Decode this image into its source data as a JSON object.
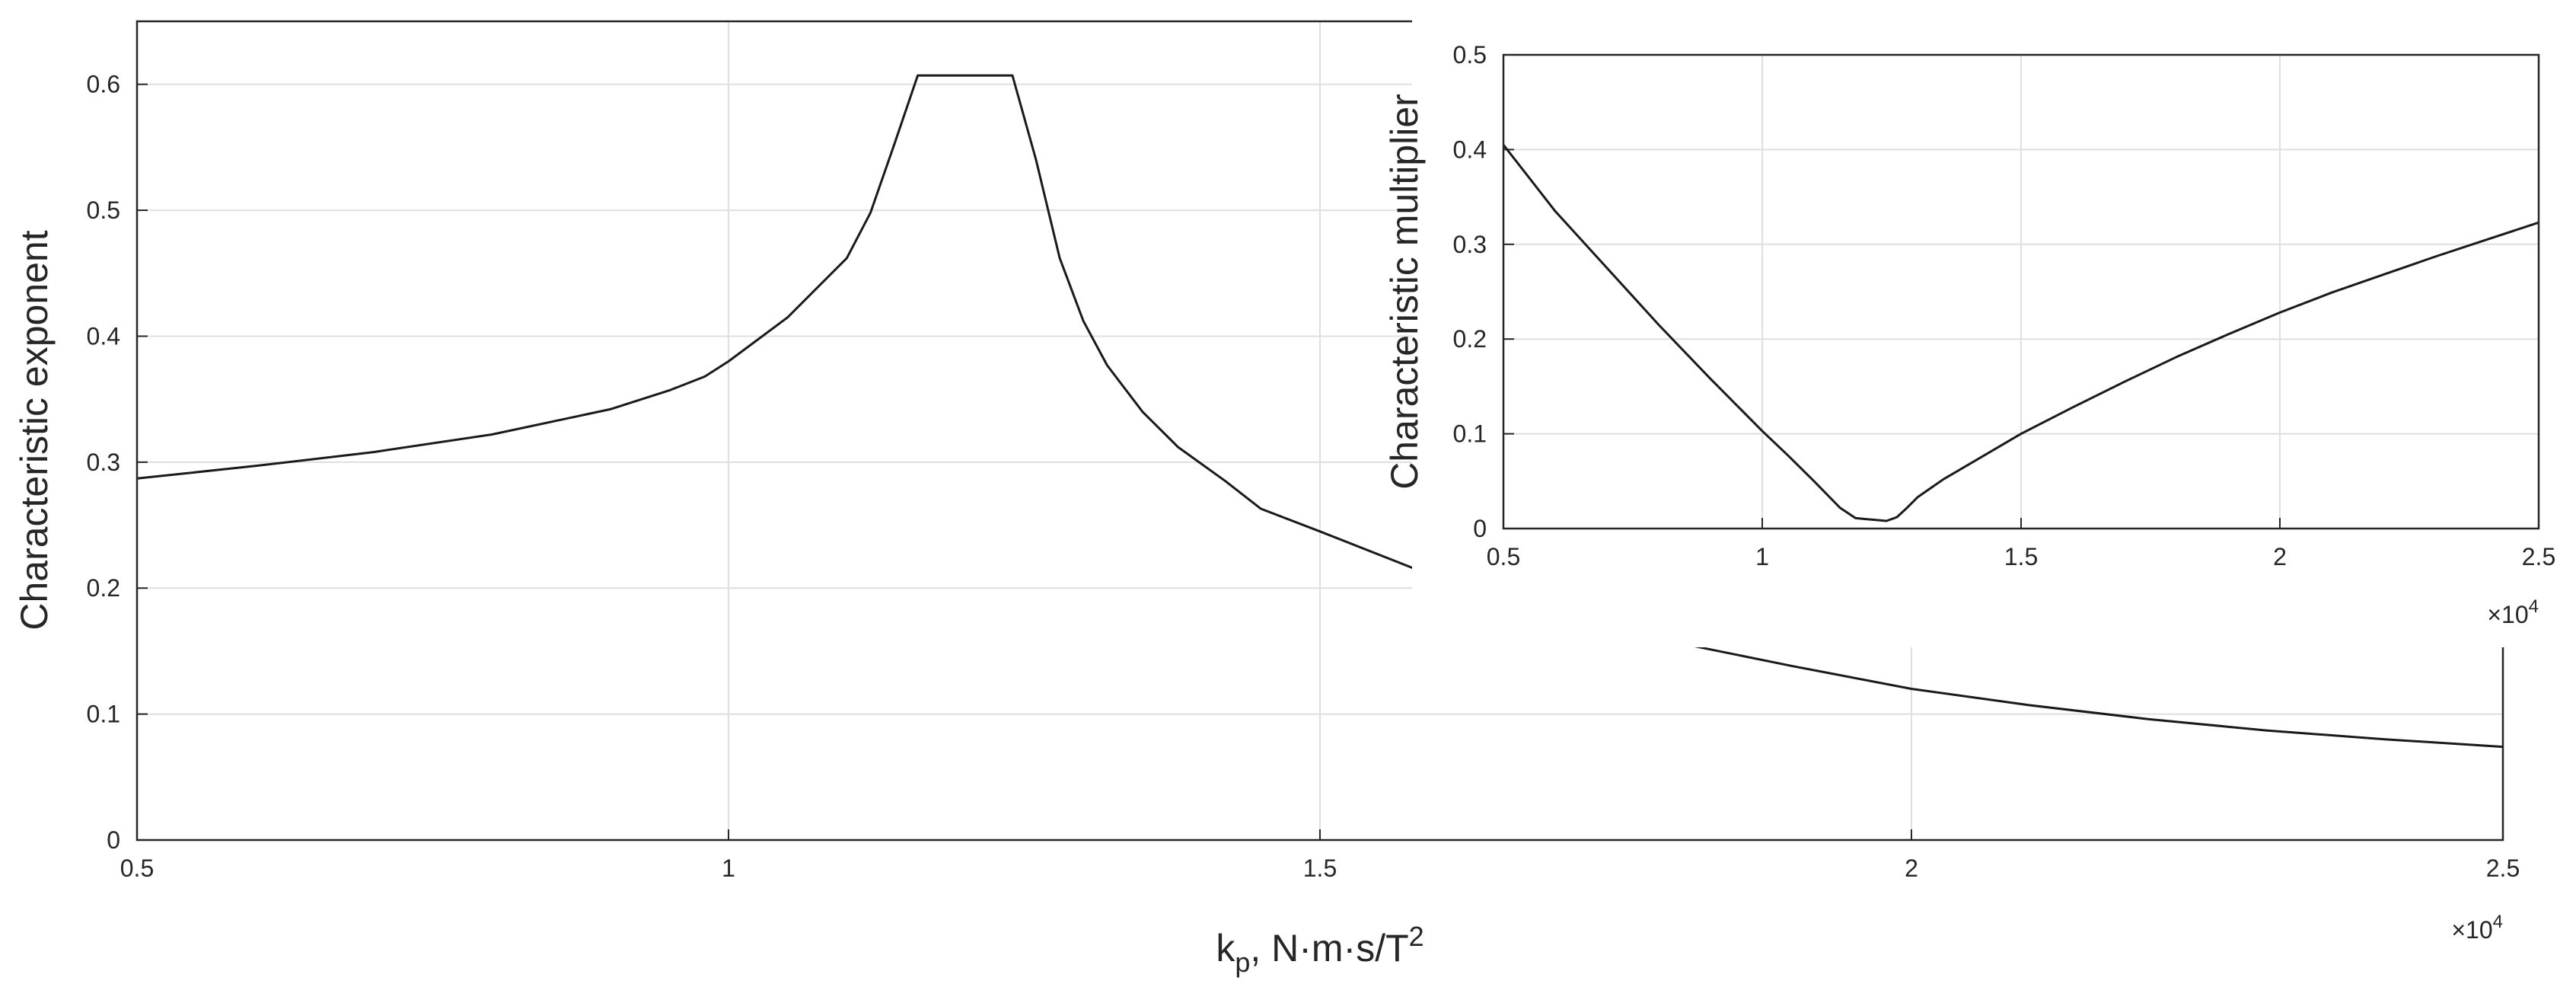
{
  "chart_data": [
    {
      "type": "line",
      "xlabel": "k",
      "xlabel_sub": "p",
      "xlabel_unit": ", N·m·s/T",
      "xlabel_sup": "2",
      "ylabel": "Characteristic exponent",
      "x_multiplier": "×10",
      "x_multiplier_exp": "4",
      "xlim": [
        0.5,
        2.5
      ],
      "ylim": [
        0,
        0.65
      ],
      "xticks": [
        "0.5",
        "1",
        "1.5",
        "2",
        "2.5"
      ],
      "yticks": [
        "0",
        "0.1",
        "0.2",
        "0.3",
        "0.4",
        "0.5",
        "0.6"
      ],
      "grid": true,
      "series": [
        {
          "x": [
            0.5,
            0.6,
            0.7,
            0.8,
            0.9,
            0.95,
            0.98,
            1.0,
            1.05,
            1.1,
            1.12,
            1.14,
            1.16,
            1.18,
            1.2,
            1.22,
            1.24,
            1.26,
            1.28,
            1.3,
            1.32,
            1.35,
            1.38,
            1.42,
            1.45,
            1.5,
            1.6,
            1.7,
            1.8,
            1.9,
            2.0,
            2.1,
            2.2,
            2.3,
            2.4,
            2.5
          ],
          "y": [
            0.287,
            0.297,
            0.308,
            0.322,
            0.342,
            0.357,
            0.368,
            0.38,
            0.415,
            0.462,
            0.498,
            0.552,
            0.607,
            0.607,
            0.607,
            0.607,
            0.607,
            0.54,
            0.462,
            0.412,
            0.377,
            0.34,
            0.312,
            0.285,
            0.263,
            0.245,
            0.208,
            0.18,
            0.157,
            0.138,
            0.12,
            0.107,
            0.096,
            0.087,
            0.08,
            0.074
          ]
        }
      ]
    },
    {
      "type": "line",
      "xlabel": "",
      "ylabel": "Characteristic multiplier",
      "x_multiplier": "×10",
      "x_multiplier_exp": "4",
      "xlim": [
        0.5,
        2.5
      ],
      "ylim": [
        0,
        0.5
      ],
      "xticks": [
        "0.5",
        "1",
        "1.5",
        "2",
        "2.5"
      ],
      "yticks": [
        "0",
        "0.1",
        "0.2",
        "0.3",
        "0.4",
        "0.5"
      ],
      "grid": true,
      "series": [
        {
          "x": [
            0.5,
            0.55,
            0.6,
            0.7,
            0.8,
            0.9,
            1.0,
            1.05,
            1.1,
            1.15,
            1.18,
            1.2,
            1.22,
            1.24,
            1.26,
            1.28,
            1.3,
            1.35,
            1.4,
            1.5,
            1.6,
            1.7,
            1.8,
            1.9,
            2.0,
            2.1,
            2.2,
            2.3,
            2.4,
            2.5
          ],
          "y": [
            0.405,
            0.37,
            0.335,
            0.275,
            0.215,
            0.158,
            0.103,
            0.077,
            0.05,
            0.022,
            0.011,
            0.01,
            0.009,
            0.008,
            0.012,
            0.022,
            0.033,
            0.052,
            0.068,
            0.1,
            0.128,
            0.155,
            0.181,
            0.205,
            0.228,
            0.249,
            0.268,
            0.287,
            0.305,
            0.323
          ]
        }
      ]
    }
  ]
}
